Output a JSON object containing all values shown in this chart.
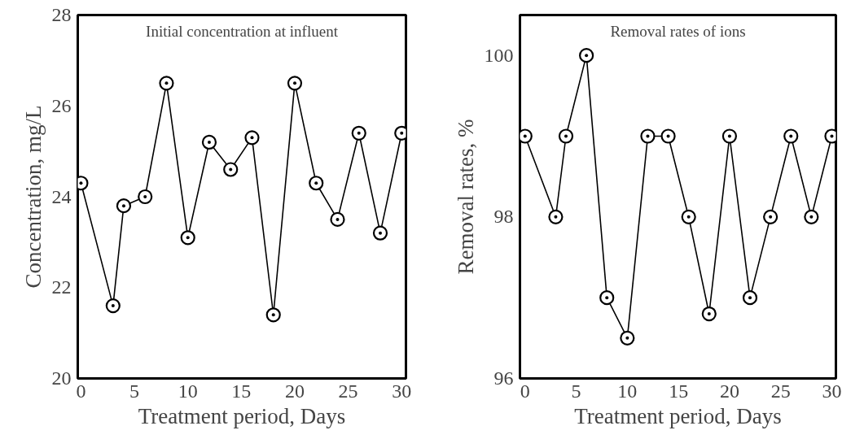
{
  "chart_data": [
    {
      "type": "line",
      "title": "Initial concentration at influent",
      "xlabel": "Treatment period, Days",
      "ylabel": "Concentration, mg/L",
      "marker": "circle",
      "line_style": "solid",
      "grid": false,
      "x": [
        0,
        3,
        4,
        6,
        8,
        10,
        12,
        14,
        16,
        18,
        20,
        22,
        24,
        26,
        28,
        30
      ],
      "series": [
        {
          "color": "#000000",
          "values": [
            24.3,
            21.6,
            23.8,
            24.0,
            26.5,
            23.1,
            25.2,
            24.6,
            25.3,
            21.4,
            26.5,
            24.3,
            23.5,
            25.4,
            23.2,
            25.4
          ]
        }
      ],
      "xlim": [
        -0.3,
        30.4
      ],
      "xticks": [
        0,
        5,
        10,
        15,
        20,
        25,
        30
      ],
      "ylim": [
        20,
        28
      ],
      "yticks": [
        20,
        22,
        24,
        26,
        28
      ]
    },
    {
      "type": "line",
      "title": "Removal rates of ions",
      "xlabel": "Treatment period, Days",
      "ylabel": "Removal rates, %",
      "marker": "circle",
      "line_style": "solid",
      "grid": false,
      "x": [
        0,
        3,
        4,
        6,
        8,
        10,
        12,
        14,
        16,
        18,
        20,
        22,
        24,
        26,
        28,
        30
      ],
      "series": [
        {
          "color": "#000000",
          "values": [
            99,
            98,
            99,
            100,
            97,
            96.5,
            99,
            99,
            98,
            96.8,
            99,
            97,
            98,
            99,
            98,
            99
          ]
        }
      ],
      "xlim": [
        -0.5,
        30.4
      ],
      "xticks": [
        0,
        5,
        10,
        15,
        20,
        25,
        30
      ],
      "ylim": [
        96,
        100.5
      ],
      "yticks": [
        96,
        98,
        100
      ]
    }
  ]
}
